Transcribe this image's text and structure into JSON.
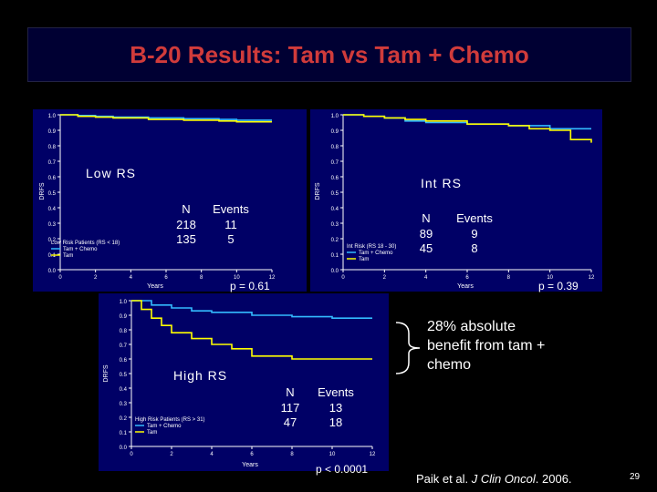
{
  "slide": {
    "title": "B-20 Results: Tam vs Tam + Chemo",
    "reference_prefix": "Paik et al. ",
    "reference_journal": "J Clin Oncol",
    "reference_suffix": ". 2006.",
    "page_number": "29",
    "annotation": "28% absolute benefit from tam + chemo"
  },
  "colors": {
    "background": "#000000",
    "panel": "#000066",
    "title": "#d03b3b",
    "tam": "#ffff00",
    "tam_chemo": "#33bbff"
  },
  "panels": {
    "low": {
      "label": "Low RS",
      "stats_headers": [
        "N",
        "Events"
      ],
      "stats_rows": [
        [
          "218",
          "11"
        ],
        [
          "135",
          "5"
        ]
      ],
      "pvalue": "p = 0.61"
    },
    "int": {
      "label": "Int RS",
      "stats_headers": [
        "N",
        "Events"
      ],
      "stats_rows": [
        [
          "89",
          "9"
        ],
        [
          "45",
          "8"
        ]
      ],
      "pvalue": "p = 0.39"
    },
    "high": {
      "label": "High RS",
      "stats_headers": [
        "N",
        "Events"
      ],
      "stats_rows": [
        [
          "117",
          "13"
        ],
        [
          "47",
          "18"
        ]
      ],
      "pvalue": "p < 0.0001"
    }
  },
  "chart_data": [
    {
      "type": "line",
      "id": "low",
      "title": "Low RS",
      "xlabel": "Years",
      "ylabel": "DRFS",
      "xlim": [
        0,
        12
      ],
      "ylim": [
        0,
        1.0
      ],
      "xticks": [
        "0",
        "2",
        "4",
        "6",
        "8",
        "10",
        "12"
      ],
      "yticks": [
        "0.0",
        "0.1",
        "0.2",
        "0.3",
        "0.4",
        "0.5",
        "0.6",
        "0.7",
        "0.8",
        "0.9",
        "1.0"
      ],
      "legend_title": "Low Risk Patients (RS < 18)",
      "series": [
        {
          "name": "Tam + Chemo",
          "color": "#33bbff",
          "x": [
            0,
            1,
            2,
            3,
            5,
            7,
            9,
            10,
            12
          ],
          "y": [
            1.0,
            0.995,
            0.99,
            0.985,
            0.98,
            0.975,
            0.97,
            0.965,
            0.965
          ]
        },
        {
          "name": "Tam",
          "color": "#ffff00",
          "x": [
            0,
            1,
            2,
            3,
            5,
            7,
            9,
            10,
            12
          ],
          "y": [
            1.0,
            0.99,
            0.985,
            0.98,
            0.97,
            0.965,
            0.96,
            0.955,
            0.955
          ]
        }
      ]
    },
    {
      "type": "line",
      "id": "int",
      "title": "Int RS",
      "xlabel": "Years",
      "ylabel": "DRFS",
      "xlim": [
        0,
        12
      ],
      "ylim": [
        0,
        1.0
      ],
      "xticks": [
        "0",
        "2",
        "4",
        "6",
        "8",
        "10",
        "12"
      ],
      "yticks": [
        "0.0",
        "0.1",
        "0.2",
        "0.3",
        "0.4",
        "0.5",
        "0.6",
        "0.7",
        "0.8",
        "0.9",
        "1.0"
      ],
      "legend_title": "Int Risk (RS 18 - 30)",
      "series": [
        {
          "name": "Tam + Chemo",
          "color": "#33bbff",
          "x": [
            0,
            1,
            2,
            3,
            4,
            6,
            8,
            10,
            12
          ],
          "y": [
            1.0,
            0.99,
            0.98,
            0.96,
            0.95,
            0.94,
            0.93,
            0.91,
            0.91
          ]
        },
        {
          "name": "Tam",
          "color": "#ffff00",
          "x": [
            0,
            1,
            2,
            3,
            4,
            6,
            8,
            9,
            10,
            11,
            12
          ],
          "y": [
            1.0,
            0.99,
            0.98,
            0.97,
            0.96,
            0.94,
            0.93,
            0.91,
            0.9,
            0.84,
            0.82
          ]
        }
      ]
    },
    {
      "type": "line",
      "id": "high",
      "title": "High RS",
      "xlabel": "Years",
      "ylabel": "DRFS",
      "xlim": [
        0,
        12
      ],
      "ylim": [
        0,
        1.0
      ],
      "xticks": [
        "0",
        "2",
        "4",
        "6",
        "8",
        "10",
        "12"
      ],
      "yticks": [
        "0.0",
        "0.1",
        "0.2",
        "0.3",
        "0.4",
        "0.5",
        "0.6",
        "0.7",
        "0.8",
        "0.9",
        "1.0"
      ],
      "legend_title": "High Risk Patients (RS > 31)",
      "series": [
        {
          "name": "Tam + Chemo",
          "color": "#33bbff",
          "x": [
            0,
            1,
            2,
            3,
            4,
            6,
            8,
            10,
            12
          ],
          "y": [
            1.0,
            0.97,
            0.95,
            0.93,
            0.92,
            0.9,
            0.89,
            0.88,
            0.88
          ]
        },
        {
          "name": "Tam",
          "color": "#ffff00",
          "x": [
            0,
            0.5,
            1,
            1.5,
            2,
            3,
            4,
            5,
            6,
            8,
            10,
            12
          ],
          "y": [
            1.0,
            0.94,
            0.88,
            0.83,
            0.78,
            0.74,
            0.7,
            0.67,
            0.62,
            0.6,
            0.6,
            0.6
          ]
        }
      ]
    }
  ]
}
